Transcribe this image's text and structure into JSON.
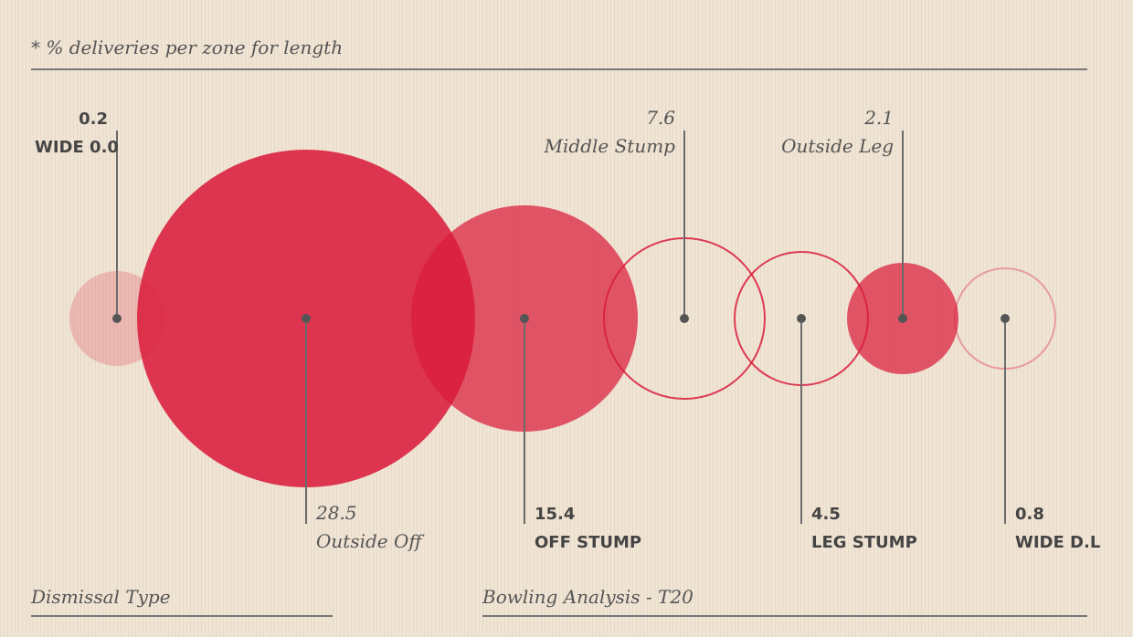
{
  "note": "* % deliveries per zone for length",
  "footer": {
    "left": "Dismissal Type",
    "right": "Bowling Analysis - T20"
  },
  "chart_data": {
    "type": "bubble",
    "x_label": "",
    "y_label": "",
    "colors": {
      "accent": "#d91c3c",
      "leader": "#6a6a6a"
    },
    "points": [
      {
        "name": "WIDE 0.0",
        "value": 0.2,
        "value_text": "0.2",
        "style": "faint-fill",
        "label_side": "top",
        "label_font": "bold"
      },
      {
        "name": "Outside Off",
        "value": 28.5,
        "value_text": "28.5",
        "style": "fill",
        "label_side": "bottom",
        "label_font": "italic"
      },
      {
        "name": "OFF STUMP",
        "value": 15.4,
        "value_text": "15.4",
        "style": "fill-light",
        "label_side": "bottom",
        "label_font": "bold"
      },
      {
        "name": "Middle Stump",
        "value": 7.6,
        "value_text": "7.6",
        "style": "outline",
        "label_side": "top",
        "label_font": "italic",
        "anchor": "end"
      },
      {
        "name": "LEG STUMP",
        "value": 4.5,
        "value_text": "4.5",
        "style": "outline",
        "label_side": "bottom",
        "label_font": "bold"
      },
      {
        "name": "Outside Leg",
        "value": 2.1,
        "value_text": "2.1",
        "style": "fill-light",
        "label_side": "top",
        "label_font": "italic",
        "anchor": "end"
      },
      {
        "name": "WIDE D.L",
        "value": 0.8,
        "value_text": "0.8",
        "style": "faint-outline",
        "label_side": "bottom",
        "label_font": "bold"
      }
    ]
  }
}
